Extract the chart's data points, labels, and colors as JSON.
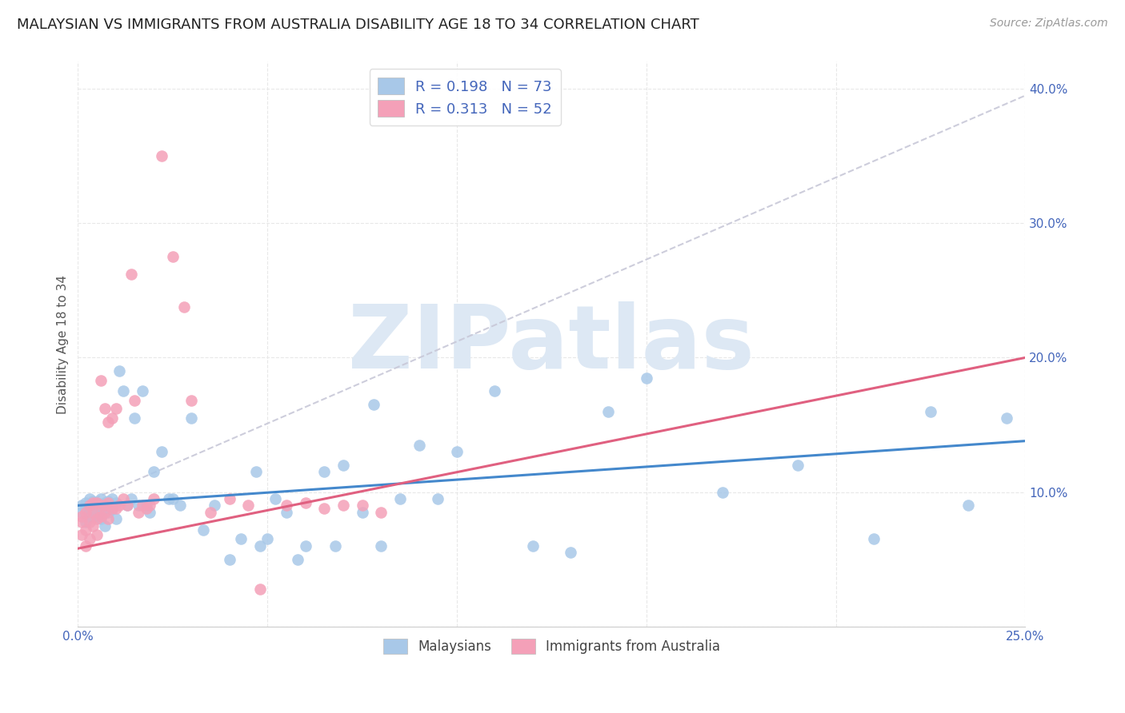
{
  "title": "MALAYSIAN VS IMMIGRANTS FROM AUSTRALIA DISABILITY AGE 18 TO 34 CORRELATION CHART",
  "source": "Source: ZipAtlas.com",
  "ylabel": "Disability Age 18 to 34",
  "xlim": [
    0.0,
    0.25
  ],
  "ylim": [
    0.0,
    0.42
  ],
  "xticks": [
    0.0,
    0.05,
    0.1,
    0.15,
    0.2,
    0.25
  ],
  "yticks": [
    0.0,
    0.1,
    0.2,
    0.3,
    0.4
  ],
  "xtick_labels": [
    "0.0%",
    "",
    "",
    "",
    "",
    "25.0%"
  ],
  "ytick_labels": [
    "",
    "10.0%",
    "20.0%",
    "30.0%",
    "40.0%"
  ],
  "blue_R": 0.198,
  "blue_N": 73,
  "pink_R": 0.313,
  "pink_N": 52,
  "blue_color": "#a8c8e8",
  "pink_color": "#f4a0b8",
  "blue_line_color": "#4488cc",
  "pink_line_color": "#e06080",
  "dash_line_color": "#c8c8d8",
  "watermark": "ZIPatlas",
  "watermark_color": "#dde8f4",
  "background_color": "#ffffff",
  "grid_color": "#e8e8e8",
  "title_fontsize": 13,
  "axis_label_fontsize": 11,
  "tick_fontsize": 11,
  "legend_fontsize": 13,
  "blue_x": [
    0.001,
    0.001,
    0.002,
    0.002,
    0.002,
    0.003,
    0.003,
    0.003,
    0.004,
    0.004,
    0.004,
    0.005,
    0.005,
    0.005,
    0.006,
    0.006,
    0.006,
    0.007,
    0.007,
    0.007,
    0.008,
    0.008,
    0.009,
    0.009,
    0.01,
    0.01,
    0.011,
    0.012,
    0.013,
    0.014,
    0.015,
    0.016,
    0.017,
    0.018,
    0.019,
    0.02,
    0.022,
    0.024,
    0.025,
    0.027,
    0.03,
    0.033,
    0.036,
    0.04,
    0.043,
    0.047,
    0.05,
    0.055,
    0.06,
    0.065,
    0.07,
    0.075,
    0.08,
    0.09,
    0.1,
    0.11,
    0.12,
    0.13,
    0.14,
    0.15,
    0.17,
    0.19,
    0.21,
    0.225,
    0.235,
    0.245,
    0.048,
    0.052,
    0.058,
    0.068,
    0.078,
    0.085,
    0.095
  ],
  "blue_y": [
    0.09,
    0.085,
    0.092,
    0.078,
    0.088,
    0.095,
    0.082,
    0.085,
    0.09,
    0.086,
    0.093,
    0.088,
    0.082,
    0.092,
    0.095,
    0.086,
    0.08,
    0.092,
    0.088,
    0.075,
    0.093,
    0.085,
    0.087,
    0.095,
    0.092,
    0.08,
    0.19,
    0.175,
    0.09,
    0.095,
    0.155,
    0.09,
    0.175,
    0.09,
    0.085,
    0.115,
    0.13,
    0.095,
    0.095,
    0.09,
    0.155,
    0.072,
    0.09,
    0.05,
    0.065,
    0.115,
    0.065,
    0.085,
    0.06,
    0.115,
    0.12,
    0.085,
    0.06,
    0.135,
    0.13,
    0.175,
    0.06,
    0.055,
    0.16,
    0.185,
    0.1,
    0.12,
    0.065,
    0.16,
    0.09,
    0.155,
    0.06,
    0.095,
    0.05,
    0.06,
    0.165,
    0.095,
    0.095
  ],
  "pink_x": [
    0.001,
    0.001,
    0.001,
    0.002,
    0.002,
    0.002,
    0.003,
    0.003,
    0.003,
    0.004,
    0.004,
    0.004,
    0.005,
    0.005,
    0.005,
    0.006,
    0.006,
    0.006,
    0.007,
    0.007,
    0.007,
    0.008,
    0.008,
    0.008,
    0.009,
    0.009,
    0.01,
    0.01,
    0.011,
    0.012,
    0.013,
    0.014,
    0.015,
    0.016,
    0.017,
    0.018,
    0.019,
    0.02,
    0.022,
    0.025,
    0.028,
    0.03,
    0.035,
    0.04,
    0.045,
    0.048,
    0.055,
    0.06,
    0.065,
    0.07,
    0.075,
    0.08
  ],
  "pink_y": [
    0.082,
    0.078,
    0.068,
    0.085,
    0.072,
    0.06,
    0.09,
    0.078,
    0.065,
    0.085,
    0.092,
    0.075,
    0.08,
    0.092,
    0.068,
    0.09,
    0.082,
    0.183,
    0.162,
    0.09,
    0.085,
    0.092,
    0.08,
    0.152,
    0.088,
    0.155,
    0.088,
    0.162,
    0.09,
    0.095,
    0.09,
    0.262,
    0.168,
    0.085,
    0.09,
    0.088,
    0.09,
    0.095,
    0.35,
    0.275,
    0.238,
    0.168,
    0.085,
    0.095,
    0.09,
    0.028,
    0.09,
    0.092,
    0.088,
    0.09,
    0.09,
    0.085
  ],
  "blue_line_x0": 0.0,
  "blue_line_y0": 0.09,
  "blue_line_x1": 0.25,
  "blue_line_y1": 0.138,
  "pink_line_x0": 0.0,
  "pink_line_y0": 0.058,
  "pink_line_x1": 0.25,
  "pink_line_y1": 0.2,
  "dash_line_x0": 0.0,
  "dash_line_y0": 0.09,
  "dash_line_x1": 0.25,
  "dash_line_y1": 0.395
}
